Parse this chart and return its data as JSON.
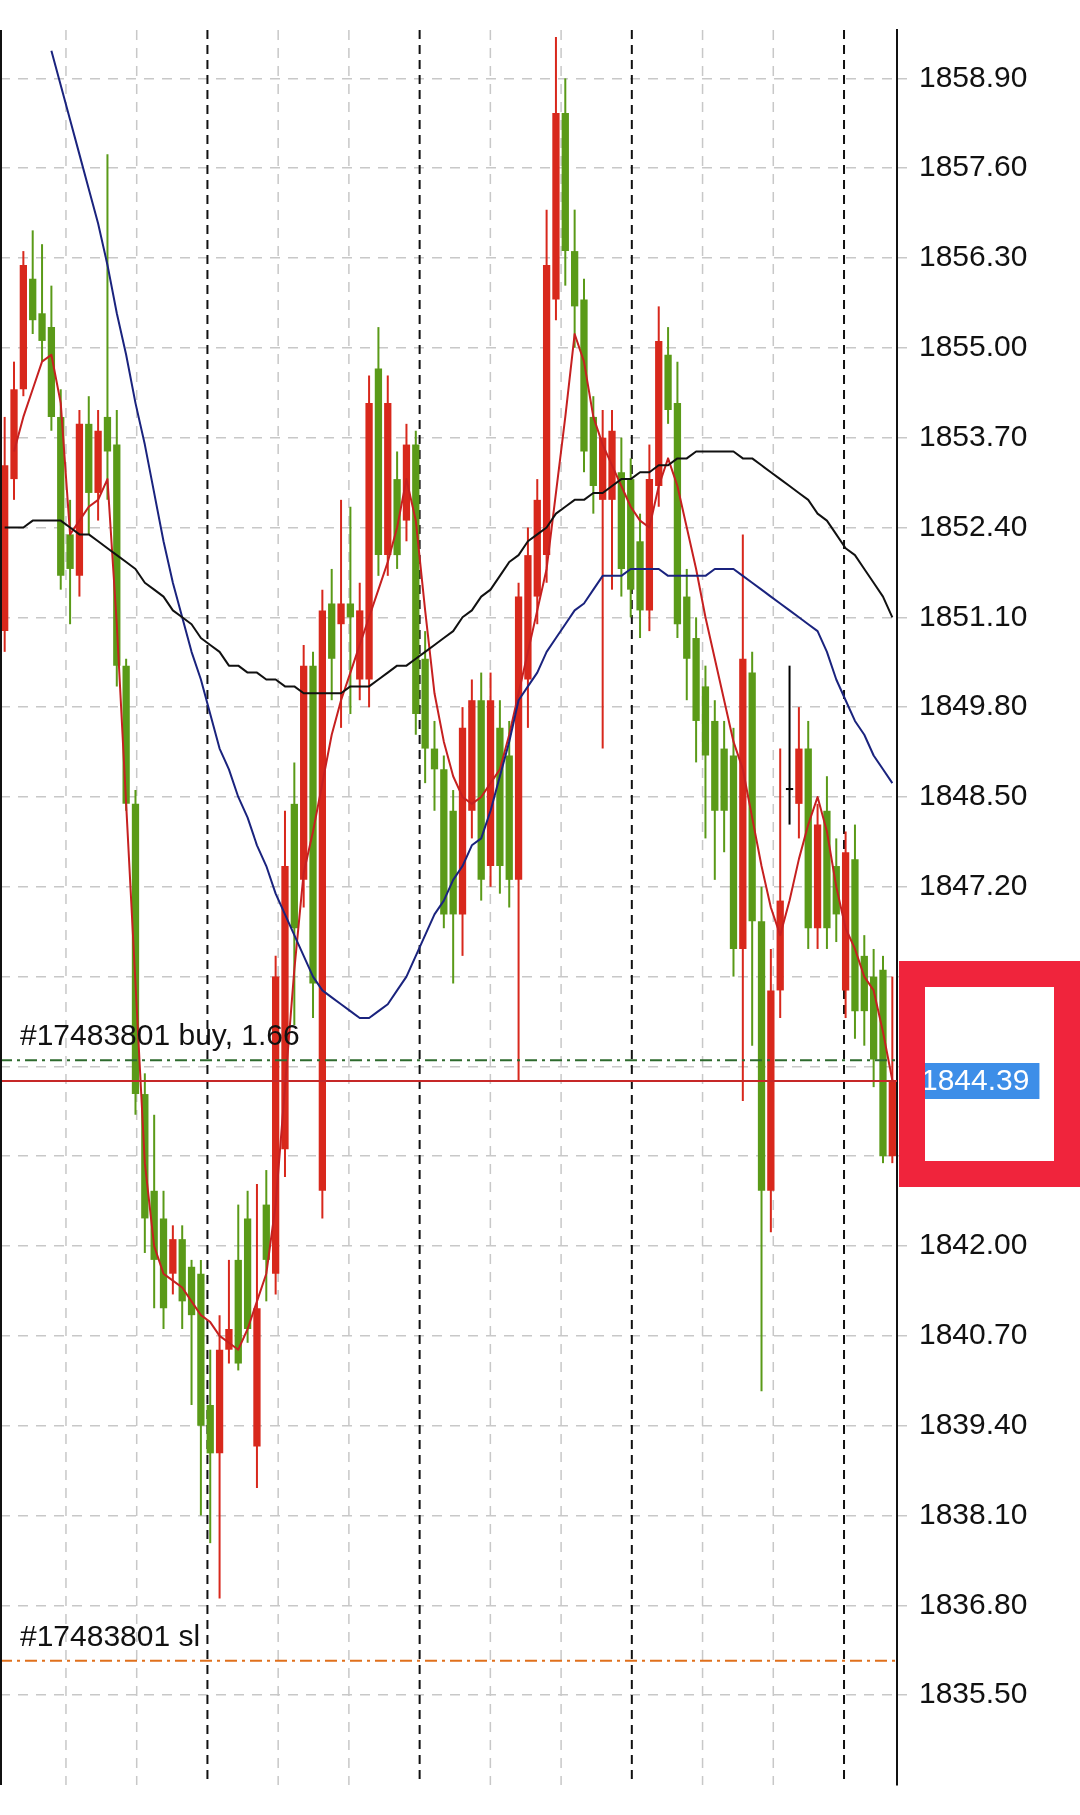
{
  "chart_data": {
    "type": "candlestick",
    "categories": [
      null,
      null,
      null,
      null,
      null,
      null,
      null,
      null,
      null,
      null,
      null,
      null,
      null,
      null,
      null,
      null,
      null,
      null,
      null,
      null,
      null,
      null,
      null,
      null,
      null,
      null,
      null,
      null,
      null,
      null,
      null,
      null,
      null,
      null,
      null,
      null,
      null,
      null,
      null,
      null,
      null,
      null,
      null,
      null,
      null,
      null,
      null,
      null,
      null,
      null,
      null,
      null,
      null,
      null,
      null,
      null,
      null,
      null,
      null,
      null,
      null,
      null,
      null,
      null,
      null,
      null,
      null,
      null,
      null,
      null,
      null,
      null,
      null,
      null,
      null,
      null,
      null,
      null,
      null,
      null,
      null,
      null,
      null,
      null,
      null,
      null,
      null,
      null,
      null,
      null,
      null,
      null,
      null,
      null,
      null,
      null
    ],
    "ohlc": [
      [
        1850.9,
        1854.0,
        1850.6,
        1853.3
      ],
      [
        1853.1,
        1854.8,
        1852.8,
        1854.4
      ],
      [
        1854.4,
        1856.4,
        1854.3,
        1856.2
      ],
      [
        1856.0,
        1856.7,
        1855.2,
        1855.4
      ],
      [
        1855.5,
        1856.5,
        1854.8,
        1855.1
      ],
      [
        1855.3,
        1855.9,
        1853.8,
        1854.0
      ],
      [
        1854.0,
        1854.4,
        1851.5,
        1851.7
      ],
      [
        1852.3,
        1852.8,
        1851.0,
        1851.8
      ],
      [
        1851.7,
        1854.1,
        1851.4,
        1853.9
      ],
      [
        1853.9,
        1854.3,
        1852.3,
        1852.9
      ],
      [
        1852.9,
        1854.1,
        1852.5,
        1853.8
      ],
      [
        1854.0,
        1857.8,
        1852.8,
        1853.5
      ],
      [
        1853.6,
        1854.1,
        1850.1,
        1850.4
      ],
      [
        1850.4,
        1850.5,
        1848.3,
        1848.4
      ],
      [
        1848.4,
        1848.6,
        1843.9,
        1844.2
      ],
      [
        1844.2,
        1844.5,
        1841.9,
        1842.4
      ],
      [
        1842.8,
        1843.9,
        1841.1,
        1841.8
      ],
      [
        1842.4,
        1842.8,
        1840.8,
        1841.1
      ],
      [
        1841.6,
        1842.3,
        1841.3,
        1842.1
      ],
      [
        1842.1,
        1842.3,
        1840.8,
        1841.2
      ],
      [
        1841.7,
        1841.8,
        1839.7,
        1841.0
      ],
      [
        1841.6,
        1841.8,
        1838.1,
        1839.4
      ],
      [
        1839.7,
        1840.5,
        1837.7,
        1839.0
      ],
      [
        1839.0,
        1841.0,
        1836.9,
        1840.5
      ],
      [
        1840.5,
        1841.8,
        1840.3,
        1840.8
      ],
      [
        1841.8,
        1842.6,
        1840.2,
        1840.3
      ],
      [
        1842.4,
        1842.8,
        1840.6,
        1840.8
      ],
      [
        1839.1,
        1842.9,
        1838.5,
        1841.1
      ],
      [
        1842.6,
        1843.1,
        1841.2,
        1841.8
      ],
      [
        1841.6,
        1846.2,
        1841.3,
        1845.9
      ],
      [
        1843.4,
        1848.3,
        1843.0,
        1847.5
      ],
      [
        1848.4,
        1849.0,
        1845.2,
        1846.6
      ],
      [
        1847.3,
        1850.7,
        1846.9,
        1850.4
      ],
      [
        1850.4,
        1850.6,
        1845.3,
        1845.8
      ],
      [
        1842.8,
        1851.5,
        1842.4,
        1851.2
      ],
      [
        1851.3,
        1851.8,
        1849.9,
        1850.5
      ],
      [
        1851.0,
        1852.8,
        1849.5,
        1851.3
      ],
      [
        1851.3,
        1852.7,
        1849.7,
        1851.1
      ],
      [
        1850.2,
        1851.6,
        1849.9,
        1851.2
      ],
      [
        1850.2,
        1854.6,
        1849.8,
        1854.2
      ],
      [
        1854.7,
        1855.3,
        1851.7,
        1852.0
      ],
      [
        1852.0,
        1854.6,
        1851.7,
        1854.2
      ],
      [
        1853.1,
        1853.5,
        1851.8,
        1852.0
      ],
      [
        1852.5,
        1853.9,
        1852.2,
        1853.6
      ],
      [
        1853.6,
        1853.8,
        1849.4,
        1849.7
      ],
      [
        1850.5,
        1850.9,
        1848.7,
        1849.2
      ],
      [
        1849.2,
        1849.6,
        1848.3,
        1848.9
      ],
      [
        1848.9,
        1849.1,
        1846.6,
        1846.8
      ],
      [
        1848.3,
        1848.6,
        1845.8,
        1846.8
      ],
      [
        1846.8,
        1849.8,
        1846.2,
        1849.5
      ],
      [
        1848.3,
        1850.2,
        1847.9,
        1849.9
      ],
      [
        1849.9,
        1850.3,
        1847.0,
        1847.3
      ],
      [
        1847.5,
        1850.3,
        1847.2,
        1849.9
      ],
      [
        1849.5,
        1849.9,
        1847.1,
        1847.5
      ],
      [
        1849.1,
        1849.6,
        1846.9,
        1847.3
      ],
      [
        1847.3,
        1851.6,
        1844.4,
        1851.4
      ],
      [
        1850.2,
        1852.4,
        1849.5,
        1852.0
      ],
      [
        1851.4,
        1853.1,
        1851.0,
        1852.8
      ],
      [
        1852.0,
        1857.0,
        1851.6,
        1856.2
      ],
      [
        1855.7,
        1859.5,
        1855.4,
        1858.4
      ],
      [
        1858.4,
        1858.9,
        1855.9,
        1856.4
      ],
      [
        1856.4,
        1857.0,
        1855.0,
        1855.6
      ],
      [
        1855.7,
        1856.0,
        1853.2,
        1853.5
      ],
      [
        1854.0,
        1854.3,
        1852.6,
        1853.0
      ],
      [
        1852.8,
        1854.1,
        1849.2,
        1853.7
      ],
      [
        1852.8,
        1854.1,
        1851.5,
        1853.8
      ],
      [
        1853.2,
        1853.7,
        1851.4,
        1851.8
      ],
      [
        1853.1,
        1853.4,
        1851.1,
        1851.5
      ],
      [
        1852.2,
        1852.6,
        1850.8,
        1851.2
      ],
      [
        1851.2,
        1853.6,
        1850.9,
        1853.1
      ],
      [
        1853.0,
        1855.6,
        1852.7,
        1855.1
      ],
      [
        1854.9,
        1855.3,
        1853.9,
        1854.1
      ],
      [
        1854.2,
        1854.8,
        1850.8,
        1851.0
      ],
      [
        1851.4,
        1851.8,
        1849.9,
        1850.5
      ],
      [
        1850.8,
        1851.1,
        1849.0,
        1849.6
      ],
      [
        1850.1,
        1850.4,
        1847.9,
        1849.1
      ],
      [
        1849.6,
        1849.9,
        1847.3,
        1848.3
      ],
      [
        1849.2,
        1849.6,
        1847.7,
        1848.3
      ],
      [
        1849.1,
        1849.5,
        1845.9,
        1846.3
      ],
      [
        1846.3,
        1852.3,
        1844.1,
        1850.5
      ],
      [
        1850.3,
        1850.6,
        1844.9,
        1846.7
      ],
      [
        1846.7,
        1847.2,
        1839.9,
        1842.8
      ],
      [
        1842.8,
        1846.3,
        1842.2,
        1845.7
      ],
      [
        1845.7,
        1849.2,
        1845.3,
        1847.0
      ],
      [
        1848.6,
        1850.4,
        1848.1,
        1848.6
      ],
      [
        1848.4,
        1849.8,
        1847.9,
        1849.2
      ],
      [
        1849.2,
        1849.6,
        1846.3,
        1846.6
      ],
      [
        1846.6,
        1848.4,
        1846.3,
        1848.1
      ],
      [
        1848.3,
        1848.8,
        1846.3,
        1846.6
      ],
      [
        1847.5,
        1847.9,
        1846.4,
        1846.8
      ],
      [
        1845.7,
        1848.0,
        1845.3,
        1847.7
      ],
      [
        1847.6,
        1848.1,
        1845.0,
        1845.4
      ],
      [
        1846.2,
        1846.5,
        1844.9,
        1845.4
      ],
      [
        1845.9,
        1846.3,
        1844.3,
        1844.7
      ],
      [
        1846.0,
        1846.2,
        1843.2,
        1843.3
      ],
      [
        1843.3,
        1845.9,
        1843.2,
        1844.39
      ]
    ],
    "colors": [
      "#d8281c",
      "#d8281c",
      "#d8281c",
      "#5a9a18",
      "#5a9a18",
      "#5a9a18",
      "#5a9a18",
      "#5a9a18",
      "#d8281c",
      "#5a9a18",
      "#d8281c",
      "#5a9a18",
      "#5a9a18",
      "#5a9a18",
      "#5a9a18",
      "#5a9a18",
      "#5a9a18",
      "#5a9a18",
      "#d8281c",
      "#5a9a18",
      "#5a9a18",
      "#5a9a18",
      "#5a9a18",
      "#d8281c",
      "#d8281c",
      "#5a9a18",
      "#5a9a18",
      "#d8281c",
      "#5a9a18",
      "#d8281c",
      "#d8281c",
      "#5a9a18",
      "#d8281c",
      "#5a9a18",
      "#d8281c",
      "#5a9a18",
      "#d8281c",
      "#5a9a18",
      "#d8281c",
      "#d8281c",
      "#5a9a18",
      "#d8281c",
      "#5a9a18",
      "#d8281c",
      "#5a9a18",
      "#5a9a18",
      "#5a9a18",
      "#5a9a18",
      "#5a9a18",
      "#d8281c",
      "#d8281c",
      "#5a9a18",
      "#d8281c",
      "#5a9a18",
      "#5a9a18",
      "#d8281c",
      "#d8281c",
      "#d8281c",
      "#d8281c",
      "#d8281c",
      "#5a9a18",
      "#5a9a18",
      "#5a9a18",
      "#5a9a18",
      "#d8281c",
      "#d8281c",
      "#5a9a18",
      "#5a9a18",
      "#5a9a18",
      "#d8281c",
      "#d8281c",
      "#5a9a18",
      "#5a9a18",
      "#5a9a18",
      "#5a9a18",
      "#5a9a18",
      "#5a9a18",
      "#5a9a18",
      "#5a9a18",
      "#d8281c",
      "#5a9a18",
      "#5a9a18",
      "#d8281c",
      "#d8281c",
      "#000000",
      "#d8281c",
      "#5a9a18",
      "#d8281c",
      "#5a9a18",
      "#5a9a18",
      "#d8281c",
      "#5a9a18",
      "#5a9a18",
      "#5a9a18",
      "#5a9a18",
      "#d8281c"
    ],
    "series": [
      {
        "type": "line",
        "color": "#111111",
        "values": [
          1852.4,
          1852.4,
          1852.4,
          1852.5,
          1852.5,
          1852.5,
          1852.5,
          1852.4,
          1852.3,
          1852.3,
          1852.2,
          1852.1,
          1852.0,
          1851.9,
          1851.8,
          1851.6,
          1851.5,
          1851.4,
          1851.2,
          1851.1,
          1851.0,
          1850.8,
          1850.7,
          1850.6,
          1850.4,
          1850.4,
          1850.3,
          1850.3,
          1850.2,
          1850.2,
          1850.1,
          1850.1,
          1850.0,
          1850.0,
          1850.0,
          1850.0,
          1850.0,
          1850.1,
          1850.1,
          1850.1,
          1850.2,
          1850.3,
          1850.4,
          1850.4,
          1850.5,
          1850.6,
          1850.7,
          1850.8,
          1850.9,
          1851.1,
          1851.2,
          1851.4,
          1851.5,
          1851.7,
          1851.9,
          1852.0,
          1852.2,
          1852.3,
          1852.4,
          1852.6,
          1852.7,
          1852.8,
          1852.8,
          1852.9,
          1852.9,
          1853.0,
          1853.1,
          1853.1,
          1853.2,
          1853.2,
          1853.3,
          1853.3,
          1853.4,
          1853.4,
          1853.5,
          1853.5,
          1853.5,
          1853.5,
          1853.5,
          1853.4,
          1853.4,
          1853.3,
          1853.2,
          1853.1,
          1853.0,
          1852.9,
          1852.8,
          1852.6,
          1852.5,
          1852.3,
          1852.1,
          1852.0,
          1851.8,
          1851.6,
          1851.4,
          1851.1
        ]
      },
      {
        "type": "line",
        "color": "#1a237e",
        "values": [
          null,
          null,
          null,
          null,
          null,
          1859.3,
          1858.8,
          1858.3,
          1857.8,
          1857.3,
          1856.8,
          1856.2,
          1855.5,
          1854.9,
          1854.2,
          1853.6,
          1852.9,
          1852.2,
          1851.6,
          1851.1,
          1850.6,
          1850.2,
          1849.7,
          1849.2,
          1848.9,
          1848.5,
          1848.2,
          1847.8,
          1847.5,
          1847.1,
          1846.8,
          1846.5,
          1846.2,
          1845.9,
          1845.7,
          1845.6,
          1845.5,
          1845.4,
          1845.3,
          1845.3,
          1845.4,
          1845.5,
          1845.7,
          1845.9,
          1846.2,
          1846.5,
          1846.8,
          1847.0,
          1847.3,
          1847.5,
          1847.8,
          1847.9,
          1848.3,
          1848.8,
          1849.3,
          1849.9,
          1850.1,
          1850.3,
          1850.6,
          1850.8,
          1851.0,
          1851.2,
          1851.3,
          1851.5,
          1851.7,
          1851.7,
          1851.7,
          1851.8,
          1851.8,
          1851.8,
          1851.8,
          1851.7,
          1851.7,
          1851.7,
          1851.7,
          1851.7,
          1851.8,
          1851.8,
          1851.8,
          1851.7,
          1851.6,
          1851.5,
          1851.4,
          1851.3,
          1851.2,
          1851.1,
          1851.0,
          1850.9,
          1850.6,
          1850.2,
          1849.9,
          1849.6,
          1849.4,
          1849.1,
          1848.9,
          1848.7
        ]
      },
      {
        "type": "line",
        "color": "#c62020",
        "values": [
          null,
          1853.5,
          1854.0,
          1854.4,
          1854.8,
          1854.9,
          1854.2,
          1852.3,
          1852.5,
          1852.7,
          1852.8,
          1853.1,
          1851.0,
          1848.4,
          1845.8,
          1843.2,
          1842.0,
          1841.6,
          1841.5,
          1841.4,
          1841.2,
          1841.0,
          1840.9,
          1840.7,
          1840.6,
          1840.5,
          1840.8,
          1841.2,
          1841.6,
          1842.6,
          1844.3,
          1846.0,
          1847.4,
          1848.0,
          1848.7,
          1849.4,
          1849.9,
          1850.3,
          1850.7,
          1851.1,
          1851.5,
          1851.9,
          1852.4,
          1853.1,
          1852.5,
          1851.2,
          1850.0,
          1849.3,
          1848.8,
          1848.5,
          1848.4,
          1848.5,
          1848.7,
          1848.9,
          1849.4,
          1850.0,
          1850.6,
          1851.2,
          1851.8,
          1852.9,
          1854.0,
          1855.2,
          1854.8,
          1854.0,
          1853.6,
          1853.3,
          1853.0,
          1852.7,
          1852.5,
          1852.4,
          1853.0,
          1853.4,
          1853.0,
          1852.4,
          1851.8,
          1851.1,
          1850.5,
          1849.9,
          1849.3,
          1848.9,
          1848.2,
          1847.5,
          1846.9,
          1846.5,
          1847.0,
          1847.6,
          1848.1,
          1848.5,
          1848.0,
          1847.2,
          1846.6,
          1846.3,
          1845.9,
          1845.7,
          1845.1,
          1844.4
        ]
      }
    ],
    "ylim": [
      1834.2,
      1859.6
    ],
    "yticks": [
      {
        "value": 1835.5,
        "label": "1835.50"
      },
      {
        "value": 1836.8,
        "label": "1836.80"
      },
      {
        "value": 1838.1,
        "label": "1838.10"
      },
      {
        "value": 1839.4,
        "label": "1839.40"
      },
      {
        "value": 1840.7,
        "label": "1840.70"
      },
      {
        "value": 1842.0,
        "label": "1842.00"
      },
      {
        "value": 1843.3,
        "label": null
      },
      {
        "value": 1844.6,
        "label": null
      },
      {
        "value": 1845.9,
        "label": null
      },
      {
        "value": 1847.2,
        "label": "1847.20"
      },
      {
        "value": 1848.5,
        "label": "1848.50"
      },
      {
        "value": 1849.8,
        "label": "1849.80"
      },
      {
        "value": 1851.1,
        "label": "1851.10"
      },
      {
        "value": 1852.4,
        "label": "1852.40"
      },
      {
        "value": 1853.7,
        "label": "1853.70"
      },
      {
        "value": 1855.0,
        "label": "1855.00"
      },
      {
        "value": 1856.3,
        "label": "1856.30"
      },
      {
        "value": 1857.6,
        "label": "1857.60"
      },
      {
        "value": 1858.9,
        "label": "1858.90"
      }
    ],
    "ref_lines": [
      {
        "axis": "y",
        "value": 1844.69,
        "label": "#17483801 buy, 1.66",
        "color": "#2e6b2e",
        "line_style": "dashed"
      },
      {
        "axis": "y",
        "value": 1844.39,
        "label": "1844.39",
        "color": "#c62828",
        "line_style": "solid"
      },
      {
        "axis": "y",
        "value": 1836.0,
        "label": "#17483801 sl",
        "color": "#e0701c",
        "line_style": "dashed"
      }
    ],
    "grid": true,
    "tick_labels": "y",
    "legend": false
  }
}
